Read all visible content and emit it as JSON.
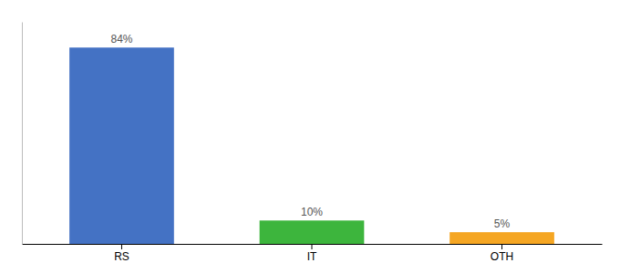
{
  "chart_data": {
    "type": "bar",
    "categories": [
      "RS",
      "IT",
      "OTH"
    ],
    "values": [
      84,
      10,
      5
    ],
    "value_labels": [
      "84%",
      "10%",
      "5%"
    ],
    "colors": [
      "#4472c4",
      "#3db53d",
      "#f5a623"
    ],
    "ylim": [
      0,
      95
    ],
    "data_labels": true,
    "tick_labels": "x"
  }
}
